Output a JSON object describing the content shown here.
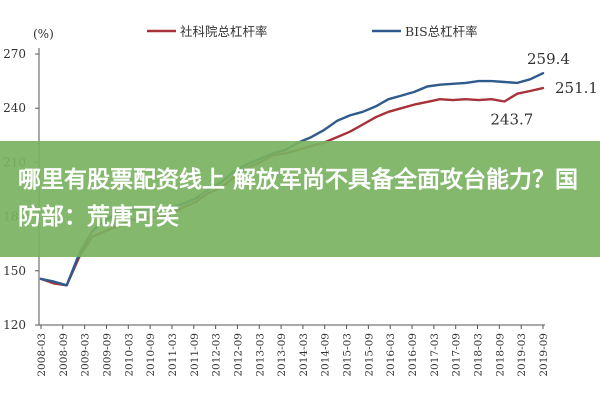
{
  "colors": {
    "series1": "#a8323a",
    "series2": "#2f5a8c",
    "overlay": "#7ab261"
  },
  "overlay": {
    "title": "哪里有股票配资线上 解放军尚不具备全面攻台能力？国防部：荒唐可笑"
  },
  "chart_data": {
    "type": "line",
    "unit_label": "(%)",
    "ylim": [
      120,
      270
    ],
    "y_ticks": [
      120,
      150,
      180,
      210,
      240,
      270
    ],
    "x_tick_labels": [
      "2008-03",
      "2008-09",
      "2009-03",
      "2009-09",
      "2010-03",
      "2010-09",
      "2011-03",
      "2011-09",
      "2012-03",
      "2012-09",
      "2013-03",
      "2013-09",
      "2014-03",
      "2014-09",
      "2015-03",
      "2015-09",
      "2016-03",
      "2016-09",
      "2017-03",
      "2017-09",
      "2018-03",
      "2018-09",
      "2019-03",
      "2019-09"
    ],
    "legend_position": "top",
    "grid": false,
    "series": [
      {
        "name": "社科院总杠杆率",
        "values": [
          145.5,
          143,
          142,
          158,
          169,
          172,
          175,
          178,
          179,
          180,
          181,
          185,
          188,
          193,
          196,
          202,
          207,
          210,
          214,
          215,
          217,
          219,
          221,
          224,
          227,
          231,
          235,
          238,
          240,
          242,
          243.5,
          245,
          244.5,
          245,
          244.5,
          245,
          243.7,
          248,
          249.5,
          251.1
        ],
        "end_label": "251.1",
        "annotation": "243.7"
      },
      {
        "name": "BIS总杠杆率",
        "values": [
          145.5,
          144,
          142,
          160,
          172,
          178,
          182,
          184,
          184,
          184,
          185,
          187,
          190,
          195,
          199,
          205,
          209,
          212,
          215,
          217,
          221,
          224,
          228,
          233,
          236,
          238,
          241,
          245,
          247,
          249,
          252,
          253,
          253.5,
          254,
          255,
          255,
          254.5,
          254,
          256,
          259.4
        ],
        "end_label": "259.4"
      }
    ]
  }
}
